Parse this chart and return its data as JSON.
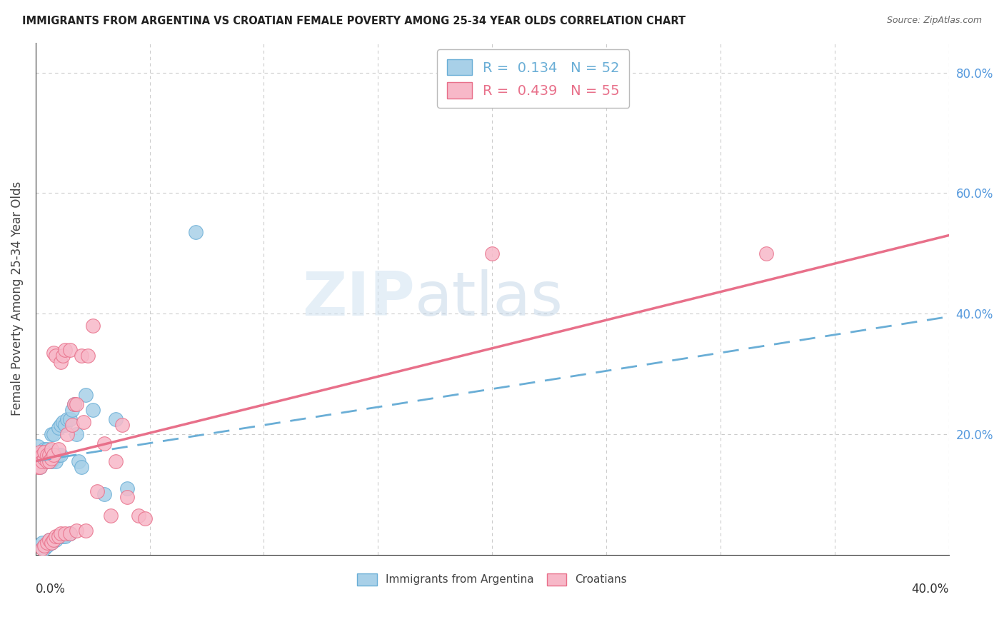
{
  "title": "IMMIGRANTS FROM ARGENTINA VS CROATIAN FEMALE POVERTY AMONG 25-34 YEAR OLDS CORRELATION CHART",
  "source": "Source: ZipAtlas.com",
  "ylabel": "Female Poverty Among 25-34 Year Olds",
  "xlim": [
    0.0,
    0.4
  ],
  "ylim": [
    0.0,
    0.85
  ],
  "argentina_color": "#a8d0e8",
  "argentina_edge": "#6aaed6",
  "argentina_line_color": "#6aaed6",
  "croatian_color": "#f7b8c8",
  "croatian_edge": "#e8708a",
  "croatian_line_color": "#e8708a",
  "argentina_R": 0.134,
  "argentina_N": 52,
  "croatian_R": 0.439,
  "croatian_N": 55,
  "watermark_zip": "ZIP",
  "watermark_atlas": "atlas",
  "background_color": "#ffffff",
  "grid_color": "#cccccc",
  "right_axis_color": "#5599dd",
  "argentina_scatter_x": [
    0.001,
    0.001,
    0.001,
    0.002,
    0.002,
    0.002,
    0.003,
    0.003,
    0.003,
    0.003,
    0.004,
    0.004,
    0.004,
    0.004,
    0.005,
    0.005,
    0.005,
    0.005,
    0.006,
    0.006,
    0.006,
    0.007,
    0.007,
    0.007,
    0.008,
    0.008,
    0.008,
    0.009,
    0.009,
    0.01,
    0.01,
    0.01,
    0.011,
    0.011,
    0.012,
    0.012,
    0.013,
    0.013,
    0.014,
    0.015,
    0.015,
    0.016,
    0.017,
    0.018,
    0.019,
    0.02,
    0.022,
    0.025,
    0.03,
    0.035,
    0.04,
    0.07
  ],
  "argentina_scatter_y": [
    0.155,
    0.18,
    0.165,
    0.155,
    0.145,
    0.165,
    0.02,
    0.155,
    0.165,
    0.17,
    0.01,
    0.16,
    0.015,
    0.175,
    0.015,
    0.155,
    0.165,
    0.175,
    0.02,
    0.025,
    0.155,
    0.02,
    0.155,
    0.2,
    0.2,
    0.16,
    0.025,
    0.025,
    0.155,
    0.21,
    0.165,
    0.03,
    0.215,
    0.165,
    0.22,
    0.03,
    0.215,
    0.03,
    0.225,
    0.225,
    0.035,
    0.24,
    0.25,
    0.2,
    0.155,
    0.145,
    0.265,
    0.24,
    0.1,
    0.225,
    0.11,
    0.535
  ],
  "croatian_scatter_x": [
    0.001,
    0.001,
    0.001,
    0.002,
    0.002,
    0.002,
    0.003,
    0.003,
    0.003,
    0.004,
    0.004,
    0.004,
    0.005,
    0.005,
    0.005,
    0.006,
    0.006,
    0.006,
    0.007,
    0.007,
    0.007,
    0.008,
    0.008,
    0.008,
    0.009,
    0.009,
    0.01,
    0.01,
    0.011,
    0.011,
    0.012,
    0.013,
    0.013,
    0.014,
    0.015,
    0.015,
    0.016,
    0.017,
    0.018,
    0.018,
    0.02,
    0.021,
    0.022,
    0.023,
    0.025,
    0.027,
    0.03,
    0.033,
    0.035,
    0.038,
    0.04,
    0.045,
    0.048,
    0.2,
    0.32
  ],
  "croatian_scatter_y": [
    0.155,
    0.165,
    0.145,
    0.16,
    0.145,
    0.17,
    0.01,
    0.165,
    0.155,
    0.015,
    0.16,
    0.17,
    0.02,
    0.155,
    0.165,
    0.025,
    0.165,
    0.155,
    0.02,
    0.16,
    0.175,
    0.025,
    0.335,
    0.165,
    0.03,
    0.33,
    0.175,
    0.03,
    0.32,
    0.035,
    0.33,
    0.34,
    0.035,
    0.2,
    0.34,
    0.035,
    0.215,
    0.25,
    0.25,
    0.04,
    0.33,
    0.22,
    0.04,
    0.33,
    0.38,
    0.105,
    0.185,
    0.065,
    0.155,
    0.215,
    0.095,
    0.065,
    0.06,
    0.5,
    0.5
  ],
  "argentina_line_x": [
    0.0,
    0.4
  ],
  "argentina_line_y": [
    0.155,
    0.395
  ],
  "croatian_line_x": [
    0.0,
    0.4
  ],
  "croatian_line_y": [
    0.155,
    0.53
  ]
}
